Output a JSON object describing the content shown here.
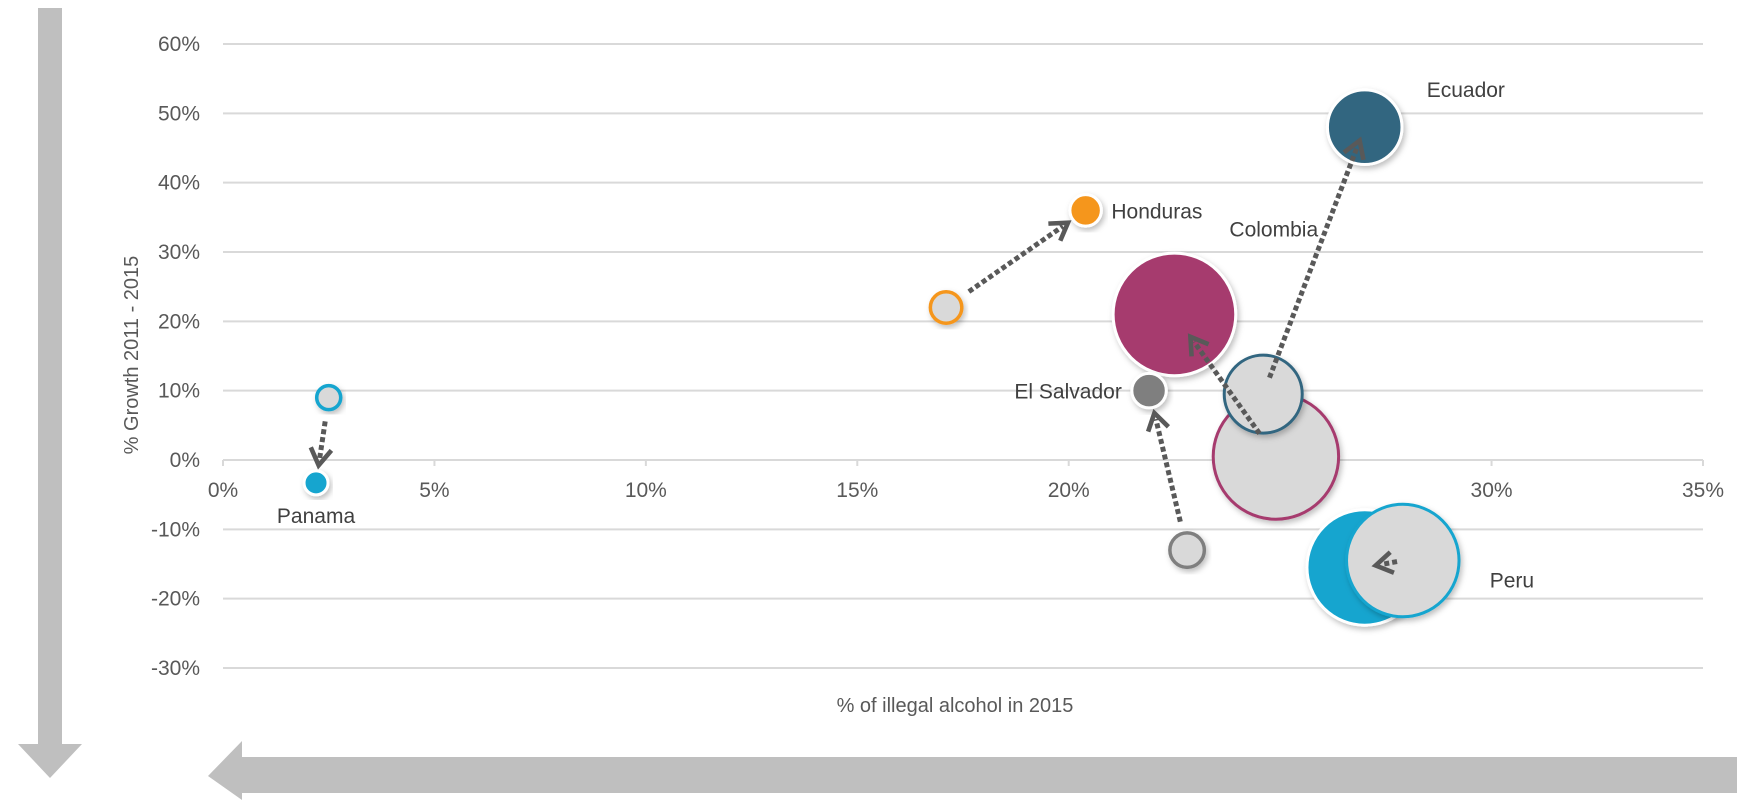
{
  "chart_data": {
    "type": "bubble",
    "xlabel": "% of illegal alcohol in 2015",
    "ylabel": "% Growth 2011 - 2015",
    "xlim": [
      0,
      35
    ],
    "ylim": [
      -30,
      60
    ],
    "x_ticks": [
      "0%",
      "5%",
      "10%",
      "15%",
      "20%",
      "25%",
      "30%",
      "35%"
    ],
    "y_ticks": [
      "60%",
      "50%",
      "40%",
      "30%",
      "20%",
      "10%",
      "0%",
      "-10%",
      "-20%",
      "-30%"
    ],
    "grid": "horizontal",
    "series": [
      {
        "name": "Panama",
        "color": "#12a5cf",
        "from": {
          "x": 2.5,
          "y": 9,
          "size": 1
        },
        "to": {
          "x": 2.2,
          "y": -3.3,
          "size": 1
        }
      },
      {
        "name": "Honduras",
        "color": "#f5961e",
        "from": {
          "x": 17.1,
          "y": 22,
          "size": 2
        },
        "to": {
          "x": 20.4,
          "y": 36,
          "size": 2
        }
      },
      {
        "name": "El Salvador",
        "color": "#7f7f7f",
        "from": {
          "x": 22.8,
          "y": -13,
          "size": 2.5
        },
        "to": {
          "x": 21.9,
          "y": 10,
          "size": 2.5
        }
      },
      {
        "name": "Colombia",
        "color": "#a63a6e",
        "from": {
          "x": 24.9,
          "y": 0.5,
          "size": 44
        },
        "to": {
          "x": 22.5,
          "y": 21,
          "size": 42
        }
      },
      {
        "name": "Ecuador",
        "color": "#336680",
        "from": {
          "x": 24.6,
          "y": 9.5,
          "size": 16
        },
        "to": {
          "x": 27.0,
          "y": 48,
          "size": 14.5
        }
      },
      {
        "name": "Peru",
        "color": "#12a5cf",
        "from": {
          "x": 27.9,
          "y": -14.5,
          "size": 35
        },
        "to": {
          "x": 27.0,
          "y": -15.5,
          "size": 37
        }
      }
    ]
  },
  "colors": {
    "grid": "#d9d9d9",
    "old_fill": "#d9d9d9",
    "arrow": "#595959",
    "big_arrow": "#bfbfbf"
  }
}
